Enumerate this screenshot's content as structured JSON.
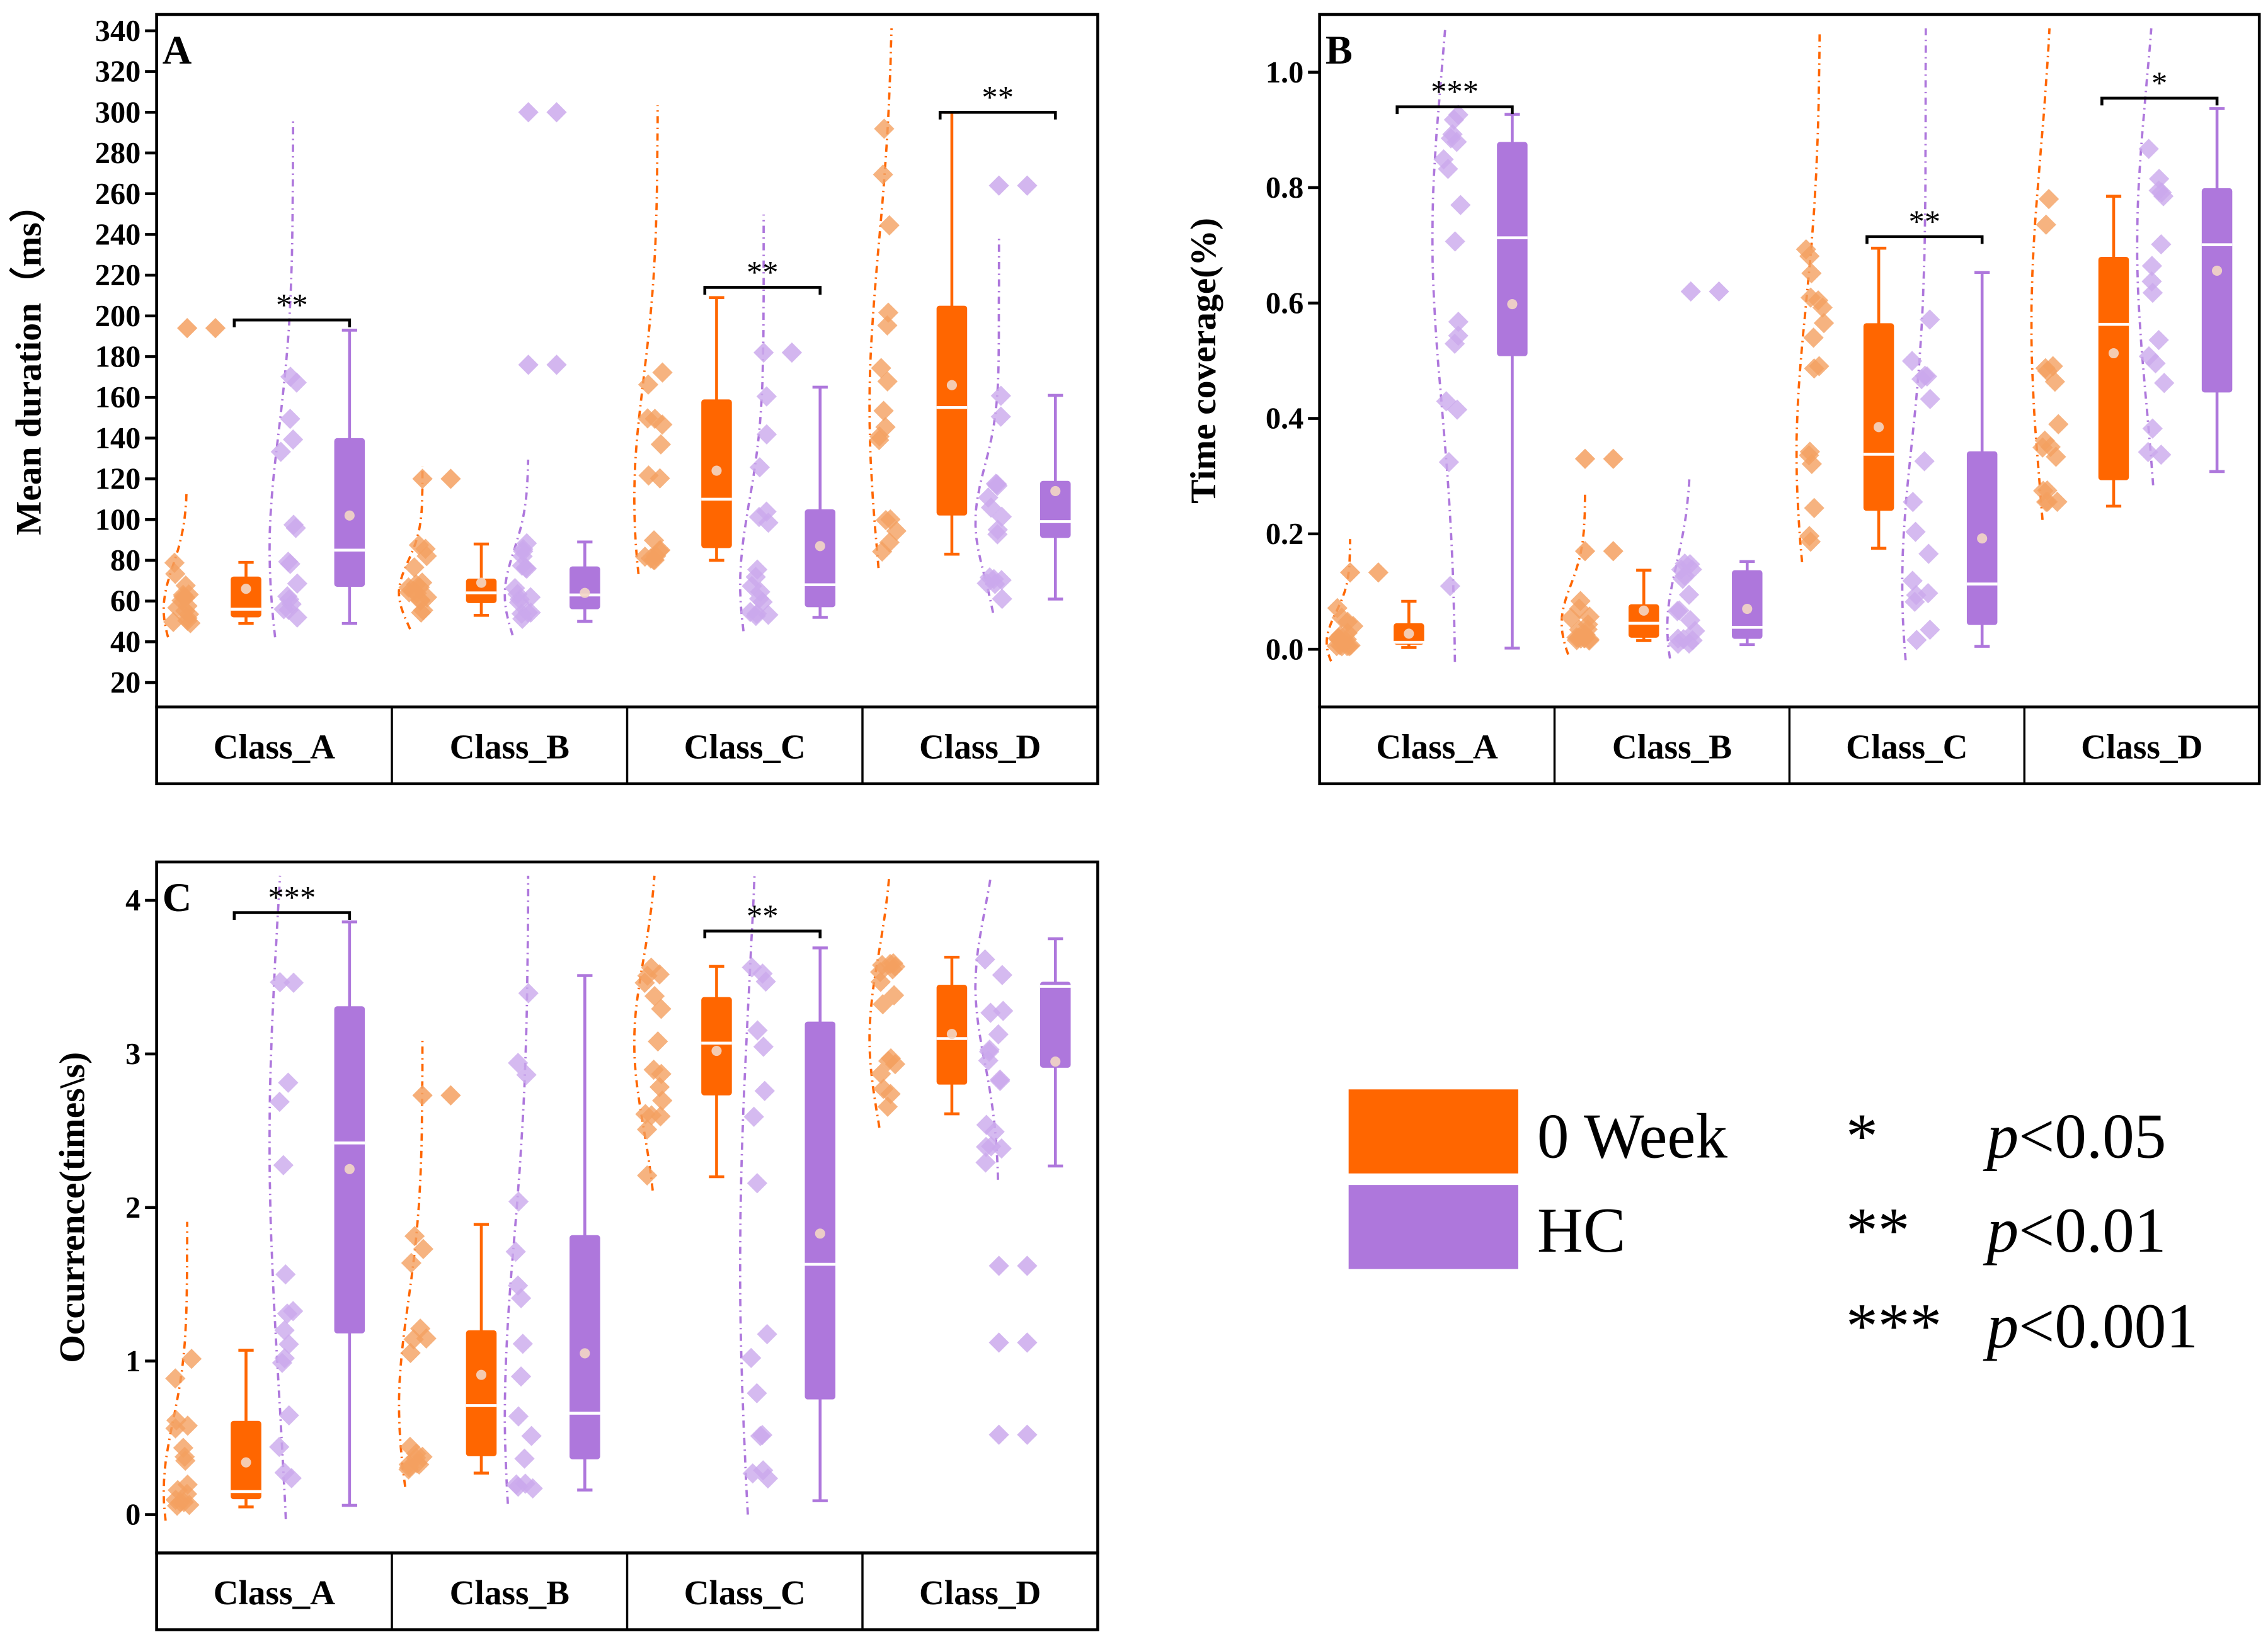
{
  "colors": {
    "week0": "#FF6600",
    "hc": "#AE77DC",
    "week0_point": "#F4A060",
    "hc_point": "#CBA9EC"
  },
  "legend": {
    "groups": [
      {
        "label": "0 Week",
        "color": "#FF6600"
      },
      {
        "label": "HC",
        "color": "#AE77DC"
      }
    ],
    "significance": [
      {
        "stars": "*",
        "p": "p",
        "text": "<0.05"
      },
      {
        "stars": "**",
        "p": "p",
        "text": "<0.01"
      },
      {
        "stars": "***",
        "p": "p",
        "text": "<0.001"
      }
    ]
  },
  "chart_data": [
    {
      "panel": "A",
      "type": "box",
      "ylabel": "Mean duration（ms）",
      "yticks": [
        20,
        40,
        60,
        80,
        100,
        120,
        140,
        160,
        180,
        200,
        220,
        240,
        260,
        280,
        300,
        320,
        340
      ],
      "ylim": [
        8,
        348
      ],
      "categories": [
        "Class_A",
        "Class_B",
        "Class_C",
        "Class_D"
      ],
      "series": [
        {
          "name": "0 Week",
          "boxes": [
            {
              "min": 49,
              "q1": 52,
              "median": 56,
              "q3": 72,
              "max": 79,
              "mean": 66,
              "outliers": [
                194
              ]
            },
            {
              "min": 53,
              "q1": 59,
              "median": 64,
              "q3": 71,
              "max": 88,
              "mean": 69,
              "outliers": [
                120
              ]
            },
            {
              "min": 80,
              "q1": 86,
              "median": 110,
              "q3": 159,
              "max": 209,
              "mean": 124,
              "outliers": []
            },
            {
              "min": 83,
              "q1": 102,
              "median": 155,
              "q3": 205,
              "max": 300,
              "mean": 166,
              "outliers": []
            }
          ]
        },
        {
          "name": "HC",
          "boxes": [
            {
              "min": 49,
              "q1": 67,
              "median": 85,
              "q3": 140,
              "max": 193,
              "mean": 102,
              "outliers": []
            },
            {
              "min": 50,
              "q1": 56,
              "median": 63,
              "q3": 77,
              "max": 89,
              "mean": 64,
              "outliers": [
                300,
                176
              ]
            },
            {
              "min": 52,
              "q1": 57,
              "median": 68,
              "q3": 105,
              "max": 165,
              "mean": 87,
              "outliers": [
                182
              ]
            },
            {
              "min": 61,
              "q1": 91,
              "median": 99,
              "q3": 119,
              "max": 161,
              "mean": 114,
              "outliers": [
                264
              ]
            }
          ]
        }
      ],
      "significance": [
        {
          "category": "Class_A",
          "label": "**",
          "y": 198
        },
        {
          "category": "Class_C",
          "label": "**",
          "y": 214
        },
        {
          "category": "Class_D",
          "label": "**",
          "y": 300
        }
      ]
    },
    {
      "panel": "B",
      "type": "box",
      "ylabel": "Time coverage(%)",
      "yticks": [
        0.0,
        0.2,
        0.4,
        0.6,
        0.8,
        1.0
      ],
      "ytick_labels": [
        "0.0",
        "0.2",
        "0.4",
        "0.6",
        "0.8",
        "1.0"
      ],
      "ylim": [
        -0.1,
        1.1
      ],
      "categories": [
        "Class_A",
        "Class_B",
        "Class_C",
        "Class_D"
      ],
      "series": [
        {
          "name": "0 Week",
          "boxes": [
            {
              "min": 0.003,
              "q1": 0.008,
              "median": 0.012,
              "q3": 0.045,
              "max": 0.083,
              "mean": 0.027,
              "outliers": [
                0.133
              ]
            },
            {
              "min": 0.015,
              "q1": 0.02,
              "median": 0.045,
              "q3": 0.078,
              "max": 0.137,
              "mean": 0.067,
              "outliers": [
                0.33,
                0.17
              ]
            },
            {
              "min": 0.175,
              "q1": 0.24,
              "median": 0.338,
              "q3": 0.565,
              "max": 0.695,
              "mean": 0.385,
              "outliers": []
            },
            {
              "min": 0.248,
              "q1": 0.293,
              "median": 0.563,
              "q3": 0.68,
              "max": 0.785,
              "mean": 0.513,
              "outliers": []
            }
          ]
        },
        {
          "name": "HC",
          "boxes": [
            {
              "min": 0.002,
              "q1": 0.508,
              "median": 0.713,
              "q3": 0.879,
              "max": 0.927,
              "mean": 0.598,
              "outliers": []
            },
            {
              "min": 0.008,
              "q1": 0.018,
              "median": 0.038,
              "q3": 0.137,
              "max": 0.152,
              "mean": 0.07,
              "outliers": [
                0.62
              ]
            },
            {
              "min": 0.005,
              "q1": 0.042,
              "median": 0.113,
              "q3": 0.343,
              "max": 0.653,
              "mean": 0.192,
              "outliers": []
            },
            {
              "min": 0.308,
              "q1": 0.445,
              "median": 0.701,
              "q3": 0.799,
              "max": 0.937,
              "mean": 0.656,
              "outliers": []
            }
          ]
        }
      ],
      "significance": [
        {
          "category": "Class_A",
          "label": "***",
          "y": 0.94
        },
        {
          "category": "Class_C",
          "label": "**",
          "y": 0.715
        },
        {
          "category": "Class_D",
          "label": "*",
          "y": 0.955
        }
      ]
    },
    {
      "panel": "C",
      "type": "box",
      "ylabel": "Occurrence(times\\s)",
      "yticks": [
        0,
        1,
        2,
        3,
        4
      ],
      "ylim": [
        -0.25,
        4.25
      ],
      "categories": [
        "Class_A",
        "Class_B",
        "Class_C",
        "Class_D"
      ],
      "series": [
        {
          "name": "0 Week",
          "boxes": [
            {
              "min": 0.05,
              "q1": 0.1,
              "median": 0.15,
              "q3": 0.61,
              "max": 1.07,
              "mean": 0.34,
              "outliers": []
            },
            {
              "min": 0.27,
              "q1": 0.38,
              "median": 0.71,
              "q3": 1.2,
              "max": 1.89,
              "mean": 0.91,
              "outliers": [
                2.73
              ]
            },
            {
              "min": 2.2,
              "q1": 2.73,
              "median": 3.07,
              "q3": 3.37,
              "max": 3.57,
              "mean": 3.02,
              "outliers": []
            },
            {
              "min": 2.61,
              "q1": 2.8,
              "median": 3.1,
              "q3": 3.45,
              "max": 3.63,
              "mean": 3.13,
              "outliers": []
            }
          ]
        },
        {
          "name": "HC",
          "boxes": [
            {
              "min": 0.06,
              "q1": 1.18,
              "median": 2.42,
              "q3": 3.31,
              "max": 3.86,
              "mean": 2.25,
              "outliers": []
            },
            {
              "min": 0.16,
              "q1": 0.36,
              "median": 0.66,
              "q3": 1.82,
              "max": 3.51,
              "mean": 1.05,
              "outliers": []
            },
            {
              "min": 0.09,
              "q1": 0.75,
              "median": 1.63,
              "q3": 3.21,
              "max": 3.69,
              "mean": 1.83,
              "outliers": []
            },
            {
              "min": 2.27,
              "q1": 2.91,
              "median": 3.44,
              "q3": 3.47,
              "max": 3.75,
              "mean": 2.95,
              "outliers": [
                1.62,
                1.12,
                0.52
              ]
            }
          ]
        }
      ],
      "significance": [
        {
          "category": "Class_A",
          "label": "***",
          "y": 3.92
        },
        {
          "category": "Class_C",
          "label": "**",
          "y": 3.8
        }
      ]
    }
  ]
}
